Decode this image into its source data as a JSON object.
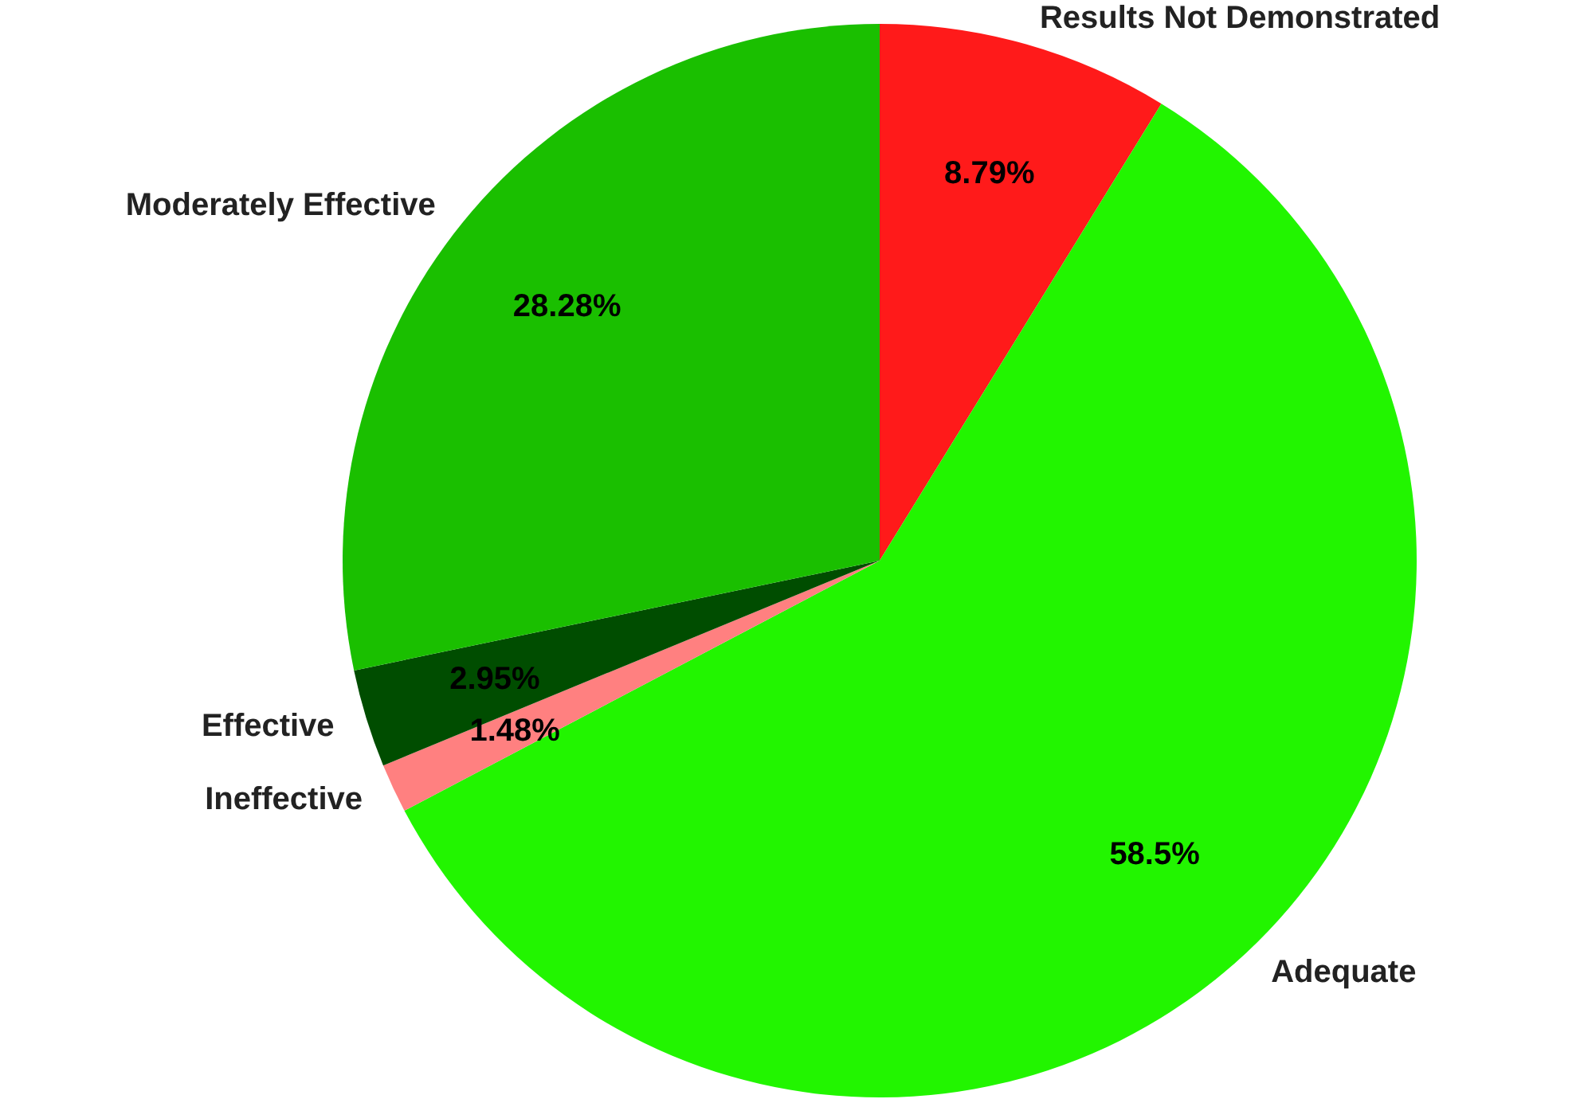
{
  "chart_data": {
    "type": "pie",
    "categories": [
      "Results Not Demonstrated",
      "Adequate",
      "Ineffective",
      "Effective",
      "Moderately Effective"
    ],
    "values": [
      8.79,
      58.5,
      1.48,
      2.95,
      28.28
    ],
    "colors": [
      "#ff1a1a",
      "#22f500",
      "#ff8080",
      "#004d00",
      "#1abf00"
    ],
    "value_labels": [
      "8.79%",
      "58.5%",
      "1.48%",
      "2.95%",
      "28.28%"
    ],
    "legend": false
  }
}
